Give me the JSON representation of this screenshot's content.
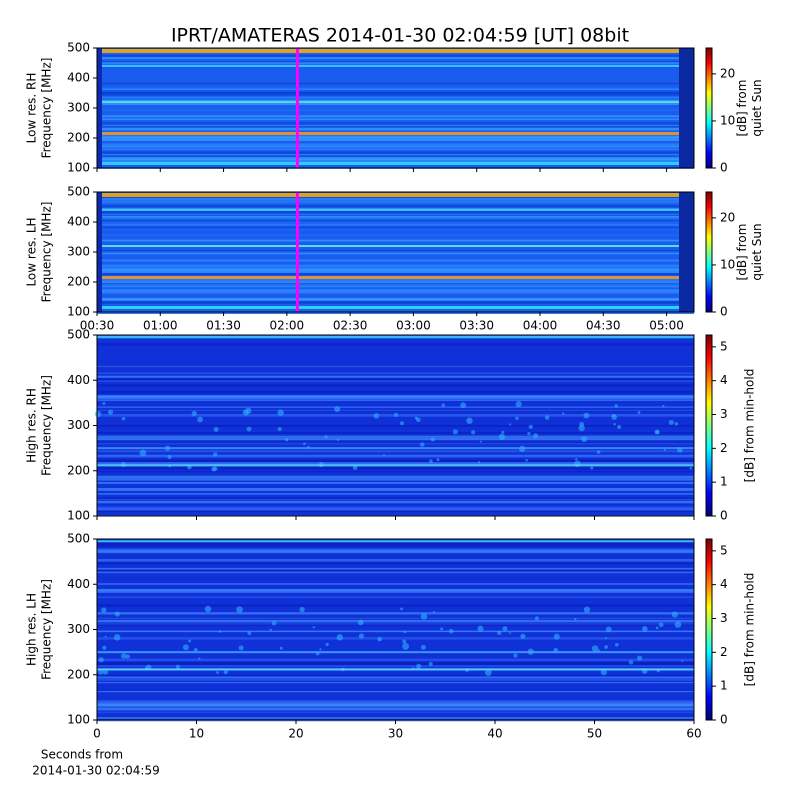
{
  "chart_data": [
    {
      "type": "spectrogram",
      "title": "IPRT/AMATERAS 2014-01-30 02:04:59 [UT]   08bit",
      "ylabel": [
        "Low res. RH",
        "Frequency [MHz]"
      ],
      "ylim": [
        100,
        500
      ],
      "yticks": [
        100,
        200,
        300,
        400,
        500
      ],
      "xlim": [
        30,
        313
      ],
      "marker": 125,
      "marker_color": "#ff00ff",
      "colorbar_label": [
        "[dB] from",
        "quiet Sun"
      ],
      "clim": [
        0,
        25.5
      ],
      "cticks": [
        0,
        10,
        20
      ],
      "colormap": "jet"
    },
    {
      "type": "spectrogram",
      "ylabel": [
        "Low res. LH",
        "Frequency [MHz]"
      ],
      "ylim": [
        100,
        500
      ],
      "yticks": [
        100,
        200,
        300,
        400,
        500
      ],
      "xlim": [
        30,
        313
      ],
      "xticks": [
        {
          "value": 30,
          "label": "00:30"
        },
        {
          "value": 60,
          "label": "01:00"
        },
        {
          "value": 90,
          "label": "01:30"
        },
        {
          "value": 120,
          "label": "02:00"
        },
        {
          "value": 150,
          "label": "02:30"
        },
        {
          "value": 180,
          "label": "03:00"
        },
        {
          "value": 210,
          "label": "03:30"
        },
        {
          "value": 240,
          "label": "04:00"
        },
        {
          "value": 270,
          "label": "04:30"
        },
        {
          "value": 300,
          "label": "05:00"
        }
      ],
      "marker": 125,
      "marker_color": "#ff00ff",
      "colorbar_label": [
        "[dB] from",
        "quiet Sun"
      ],
      "clim": [
        0,
        25.5
      ],
      "cticks": [
        0,
        10,
        20
      ],
      "colormap": "jet"
    },
    {
      "type": "spectrogram",
      "ylabel": [
        "High res. RH",
        "Frequency [MHz]"
      ],
      "ylim": [
        100,
        500
      ],
      "yticks": [
        100,
        200,
        300,
        400,
        500
      ],
      "xlim": [
        0,
        60
      ],
      "colorbar_label": [
        "[dB] from min-hold"
      ],
      "clim": [
        0,
        5.35
      ],
      "cticks": [
        0,
        1,
        2,
        3,
        4,
        5
      ],
      "colormap": "jet"
    },
    {
      "type": "spectrogram",
      "ylabel": [
        "High res. LH",
        "Frequency [MHz]"
      ],
      "ylim": [
        100,
        500
      ],
      "yticks": [
        100,
        200,
        300,
        400,
        500
      ],
      "xlim": [
        0,
        60
      ],
      "xticks": [
        0,
        10,
        20,
        30,
        40,
        50,
        60
      ],
      "xlabel": [
        "Seconds from",
        "2014-01-30 02:04:59"
      ],
      "colorbar_label": [
        "[dB] from min-hold"
      ],
      "clim": [
        0,
        5.35
      ],
      "cticks": [
        0,
        1,
        2,
        3,
        4,
        5
      ],
      "colormap": "jet"
    }
  ]
}
